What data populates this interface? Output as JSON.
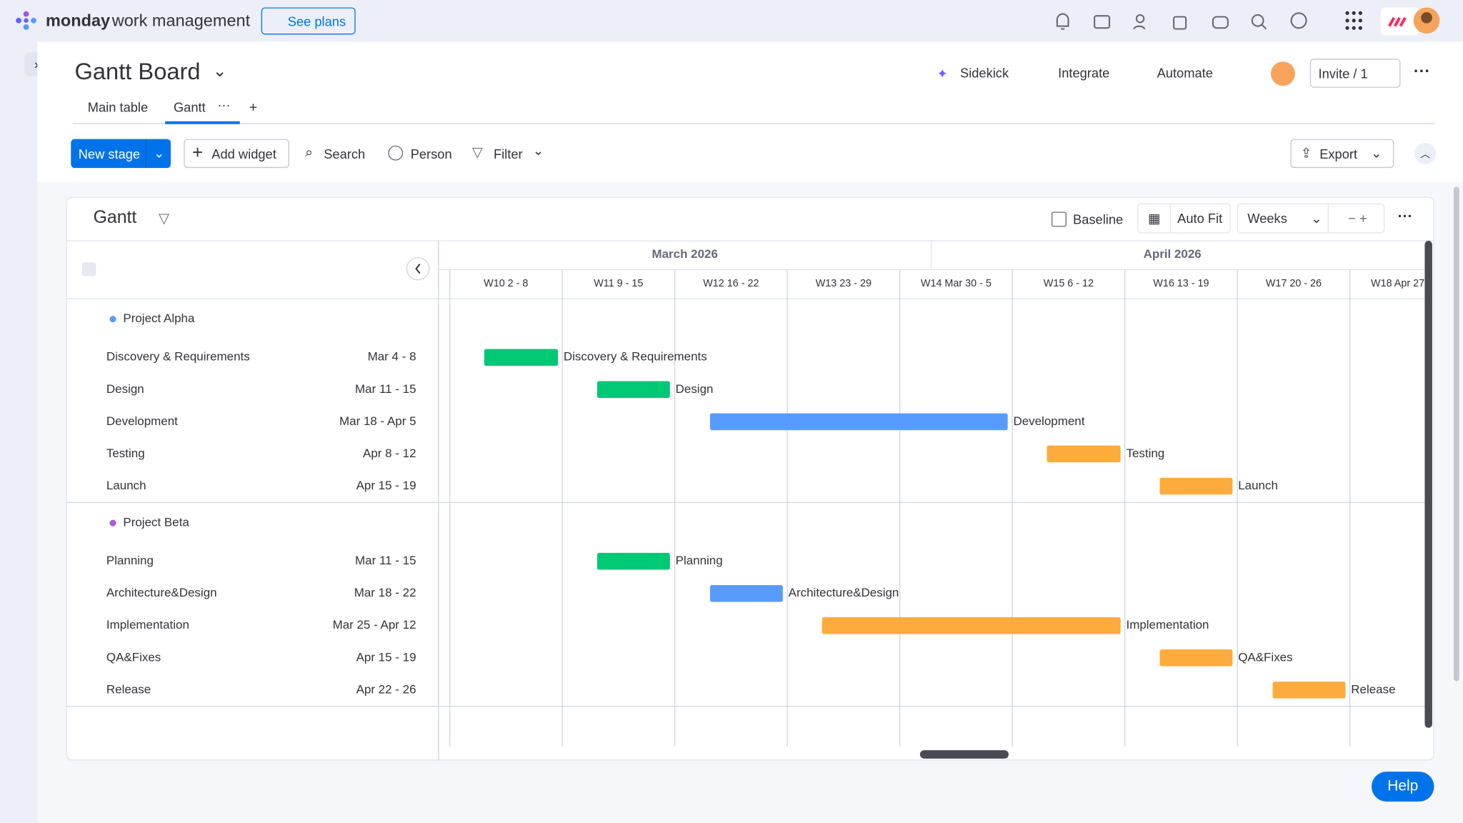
{
  "header": {
    "brand": "monday",
    "product": "work management",
    "see_plans": "See plans"
  },
  "board": {
    "title": "Gantt Board",
    "actions": [
      "Sidekick",
      "Integrate",
      "Automate"
    ],
    "invite": "Invite / 1",
    "tabs": [
      "Main table",
      "Gantt"
    ],
    "add_tab": "+"
  },
  "toolbar": {
    "new_stage": "New stage",
    "add_widget": "Add widget",
    "search": "Search",
    "person": "Person",
    "filter": "Filter",
    "export": "Export"
  },
  "gantt": {
    "title": "Gantt",
    "baseline": "Baseline",
    "auto_fit": "Auto Fit",
    "zoom": "Weeks",
    "months": [
      "March 2026",
      "April 2026"
    ],
    "weeks": [
      "W10 2 - 8",
      "W11 9 - 15",
      "W12 16 - 22",
      "W13 23 - 29",
      "W14 Mar 30 - 5",
      "W15 6 - 12",
      "W16 13 - 19",
      "W17 20 - 26",
      "W18 Apr 27"
    ],
    "groups": [
      {
        "name": "Project Alpha",
        "color": "#579bfc",
        "tasks": [
          {
            "name": "Discovery & Requirements",
            "dates": "Mar 4 - 8",
            "color": "#00c875"
          },
          {
            "name": "Design",
            "dates": "Mar 11 - 15",
            "color": "#00c875"
          },
          {
            "name": "Development",
            "dates": "Mar 18 - Apr 5",
            "color": "#579bfc"
          },
          {
            "name": "Testing",
            "dates": "Apr 8 - 12",
            "color": "#fdab3d"
          },
          {
            "name": "Launch",
            "dates": "Apr 15 - 19",
            "color": "#fdab3d"
          }
        ]
      },
      {
        "name": "Project Beta",
        "color": "#a25ddc",
        "tasks": [
          {
            "name": "Planning",
            "dates": "Mar 11 - 15",
            "color": "#00c875"
          },
          {
            "name": "Architecture&Design",
            "dates": "Mar 18 - 22",
            "color": "#579bfc"
          },
          {
            "name": "Implementation",
            "dates": "Mar 25 - Apr 12",
            "color": "#fdab3d"
          },
          {
            "name": "QA&Fixes",
            "dates": "Apr 15 - 19",
            "color": "#fdab3d"
          },
          {
            "name": "Release",
            "dates": "Apr 22 - 26",
            "color": "#fdab3d"
          }
        ]
      }
    ]
  },
  "help": "Help"
}
